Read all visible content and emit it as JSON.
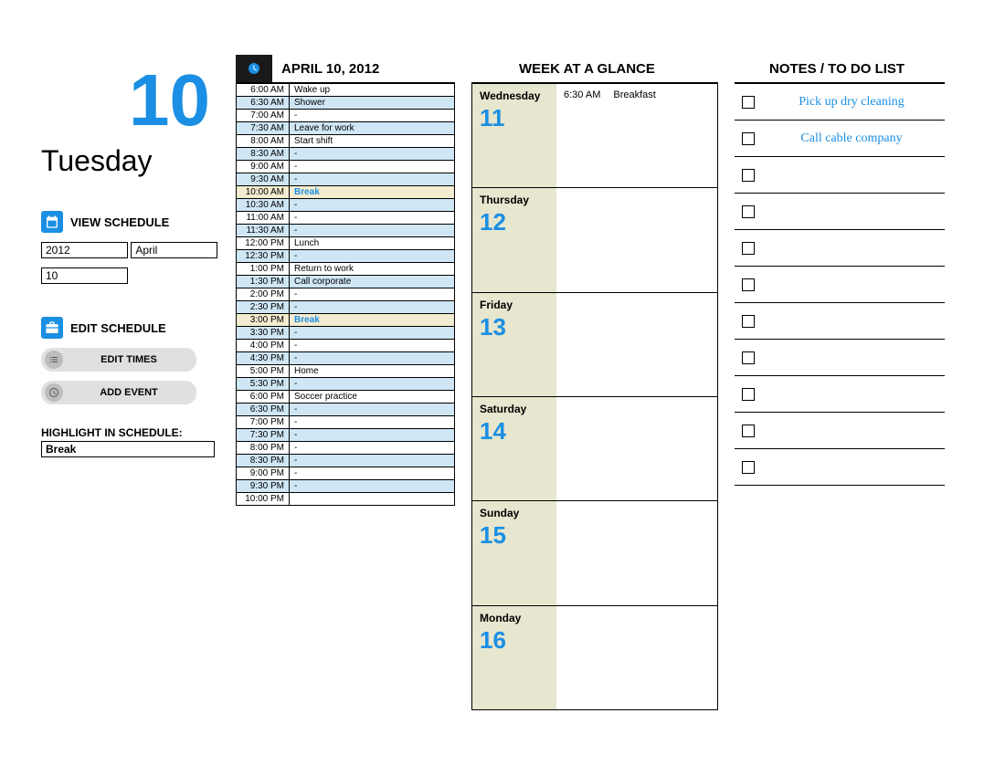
{
  "colors": {
    "accent": "#1a8fe3",
    "shade_row": "#cfe6f5",
    "highlight_row": "#f3ecd0",
    "week_left_bg": "#e7e6cf",
    "icon_head_bg": "#1a1a1a",
    "pill_bg": "#e0e0e0",
    "pill_icon_bg": "#bdbdbd"
  },
  "sidebar": {
    "big_number": "10",
    "day_name": "Tuesday",
    "view_label": "VIEW SCHEDULE",
    "edit_label": "EDIT SCHEDULE",
    "year_input": "2012",
    "month_input": "April",
    "day_input": "10",
    "btn_edit_times": "EDIT TIMES",
    "btn_add_event": "ADD EVENT",
    "highlight_label": "HIGHLIGHT IN SCHEDULE:",
    "highlight_value": "Break"
  },
  "schedule": {
    "title": "APRIL 10, 2012",
    "rows": [
      {
        "time": "6:00 AM",
        "event": "Wake up",
        "shade": false,
        "hl": false
      },
      {
        "time": "6:30 AM",
        "event": "Shower",
        "shade": true,
        "hl": false
      },
      {
        "time": "7:00 AM",
        "event": "-",
        "shade": false,
        "hl": false
      },
      {
        "time": "7:30 AM",
        "event": "Leave for work",
        "shade": true,
        "hl": false
      },
      {
        "time": "8:00 AM",
        "event": "Start shift",
        "shade": false,
        "hl": false
      },
      {
        "time": "8:30 AM",
        "event": "-",
        "shade": true,
        "hl": false
      },
      {
        "time": "9:00 AM",
        "event": "-",
        "shade": false,
        "hl": false
      },
      {
        "time": "9:30 AM",
        "event": "-",
        "shade": true,
        "hl": false
      },
      {
        "time": "10:00 AM",
        "event": "Break",
        "shade": false,
        "hl": true
      },
      {
        "time": "10:30 AM",
        "event": "-",
        "shade": true,
        "hl": false
      },
      {
        "time": "11:00 AM",
        "event": "-",
        "shade": false,
        "hl": false
      },
      {
        "time": "11:30 AM",
        "event": "-",
        "shade": true,
        "hl": false
      },
      {
        "time": "12:00 PM",
        "event": "Lunch",
        "shade": false,
        "hl": false
      },
      {
        "time": "12:30 PM",
        "event": "-",
        "shade": true,
        "hl": false
      },
      {
        "time": "1:00 PM",
        "event": "Return to work",
        "shade": false,
        "hl": false
      },
      {
        "time": "1:30 PM",
        "event": "Call corporate",
        "shade": true,
        "hl": false
      },
      {
        "time": "2:00 PM",
        "event": "-",
        "shade": false,
        "hl": false
      },
      {
        "time": "2:30 PM",
        "event": "-",
        "shade": true,
        "hl": false
      },
      {
        "time": "3:00 PM",
        "event": "Break",
        "shade": false,
        "hl": true
      },
      {
        "time": "3:30 PM",
        "event": "-",
        "shade": true,
        "hl": false
      },
      {
        "time": "4:00 PM",
        "event": "-",
        "shade": false,
        "hl": false
      },
      {
        "time": "4:30 PM",
        "event": "-",
        "shade": true,
        "hl": false
      },
      {
        "time": "5:00 PM",
        "event": "Home",
        "shade": false,
        "hl": false
      },
      {
        "time": "5:30 PM",
        "event": "-",
        "shade": true,
        "hl": false
      },
      {
        "time": "6:00 PM",
        "event": "Soccer practice",
        "shade": false,
        "hl": false
      },
      {
        "time": "6:30 PM",
        "event": "-",
        "shade": true,
        "hl": false
      },
      {
        "time": "7:00 PM",
        "event": "-",
        "shade": false,
        "hl": false
      },
      {
        "time": "7:30 PM",
        "event": "-",
        "shade": true,
        "hl": false
      },
      {
        "time": "8:00 PM",
        "event": "-",
        "shade": false,
        "hl": false
      },
      {
        "time": "8:30 PM",
        "event": "-",
        "shade": true,
        "hl": false
      },
      {
        "time": "9:00 PM",
        "event": "-",
        "shade": false,
        "hl": false
      },
      {
        "time": "9:30 PM",
        "event": "-",
        "shade": true,
        "hl": false
      },
      {
        "time": "10:00 PM",
        "event": "",
        "shade": false,
        "hl": false
      }
    ]
  },
  "week": {
    "title": "WEEK AT A GLANCE",
    "days": [
      {
        "name": "Wednesday",
        "num": "11",
        "events": [
          {
            "time": "6:30 AM",
            "label": "Breakfast"
          }
        ]
      },
      {
        "name": "Thursday",
        "num": "12",
        "events": []
      },
      {
        "name": "Friday",
        "num": "13",
        "events": []
      },
      {
        "name": "Saturday",
        "num": "14",
        "events": []
      },
      {
        "name": "Sunday",
        "num": "15",
        "events": []
      },
      {
        "name": "Monday",
        "num": "16",
        "events": []
      }
    ]
  },
  "notes": {
    "title": "NOTES / TO DO LIST",
    "items": [
      {
        "text": "Pick up dry cleaning"
      },
      {
        "text": "Call cable company"
      },
      {
        "text": ""
      },
      {
        "text": ""
      },
      {
        "text": ""
      },
      {
        "text": ""
      },
      {
        "text": ""
      },
      {
        "text": ""
      },
      {
        "text": ""
      },
      {
        "text": ""
      },
      {
        "text": ""
      }
    ]
  }
}
